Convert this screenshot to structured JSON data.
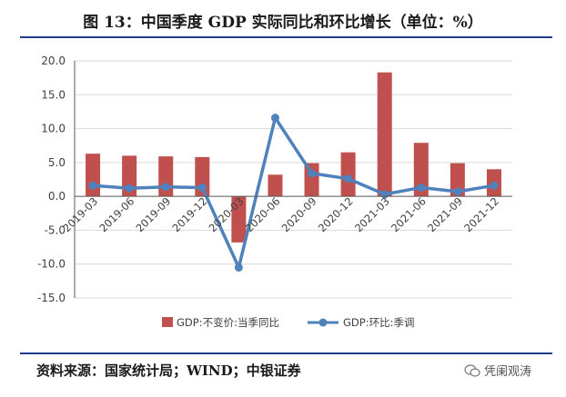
{
  "title": "图 13：中国季度 GDP 实际同比和环比增长（单位：%）",
  "source": "资料来源：国家统计局；WIND；中银证券",
  "watermark": "凭阑观涛",
  "colors": {
    "bar": "#c0504d",
    "line": "#4f81bd",
    "grid": "#d9d9d9",
    "axis": "#595959",
    "rule": "#1f3b8c"
  },
  "chart_data": {
    "type": "bar",
    "categories": [
      "2019-03",
      "2019-06",
      "2019-09",
      "2019-12",
      "2020-03",
      "2020-06",
      "2020-09",
      "2020-12",
      "2021-03",
      "2021-06",
      "2021-09",
      "2021-12"
    ],
    "series": [
      {
        "name": "GDP:不变价:当季同比",
        "type": "bar",
        "values": [
          6.3,
          6.0,
          5.9,
          5.8,
          -6.8,
          3.2,
          4.9,
          6.5,
          18.3,
          7.9,
          4.9,
          4.0
        ]
      },
      {
        "name": "GDP:环比:季调",
        "type": "line",
        "values": [
          1.6,
          1.2,
          1.4,
          1.3,
          -10.5,
          11.6,
          3.4,
          2.6,
          0.3,
          1.3,
          0.7,
          1.6
        ]
      }
    ],
    "ylim": [
      -15,
      20
    ],
    "yticks": [
      "-15.0",
      "-10.0",
      "-5.0",
      "0.0",
      "5.0",
      "10.0",
      "15.0",
      "20.0"
    ],
    "legend": [
      "GDP:不变价:当季同比",
      "GDP:环比:季调"
    ],
    "grid": true,
    "legend_position": "bottom"
  }
}
